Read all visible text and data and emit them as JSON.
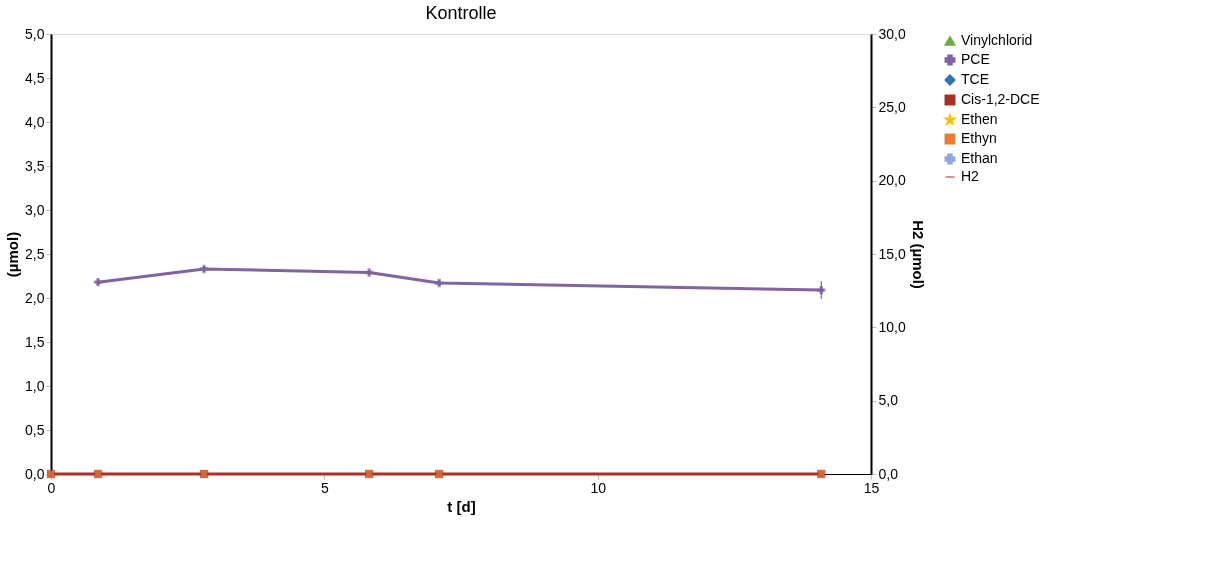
{
  "chart_data": {
    "type": "line",
    "title": "Kontrolle",
    "xlabel": "t [d]",
    "ylabel": "(µmol)",
    "y2label": "H2 (µmol)",
    "xlim": [
      0,
      15
    ],
    "xticks": [
      0,
      5,
      10,
      15
    ],
    "ylim": [
      0,
      5
    ],
    "yticks": [
      {
        "value": 0,
        "label": "0,0"
      },
      {
        "value": 0.5,
        "label": "0,5"
      },
      {
        "value": 1,
        "label": "1,0"
      },
      {
        "value": 1.5,
        "label": "1,5"
      },
      {
        "value": 2,
        "label": "2,0"
      },
      {
        "value": 2.5,
        "label": "2,5"
      },
      {
        "value": 3,
        "label": "3,0"
      },
      {
        "value": 3.5,
        "label": "3,5"
      },
      {
        "value": 4,
        "label": "4,0"
      },
      {
        "value": 4.5,
        "label": "4,5"
      },
      {
        "value": 5,
        "label": "5,0"
      }
    ],
    "y2lim": [
      0,
      30
    ],
    "y2ticks": [
      {
        "value": 0,
        "label": "0,0"
      },
      {
        "value": 5,
        "label": "5,0"
      },
      {
        "value": 10,
        "label": "10,0"
      },
      {
        "value": 15,
        "label": "15,0"
      },
      {
        "value": 20,
        "label": "20,0"
      },
      {
        "value": 25,
        "label": "25,0"
      },
      {
        "value": 30,
        "label": "30,0"
      }
    ],
    "grid": false,
    "legend": "right",
    "series": [
      {
        "name": "Vinylchlorid",
        "color": "#70ad47",
        "marker": "triangle"
      },
      {
        "name": "PCE",
        "color": "#8064a2",
        "marker": "cross",
        "x": [
          0.86,
          2.8,
          5.82,
          7.1,
          14.09
        ],
        "values": [
          2.18,
          2.33,
          2.29,
          2.17,
          2.09
        ],
        "errors": [
          0.03,
          0.03,
          0.03,
          0.03,
          0.1
        ]
      },
      {
        "name": "TCE",
        "color": "#2e75b6",
        "marker": "diamond"
      },
      {
        "name": "Cis-1,2-DCE",
        "color": "#a5302a",
        "marker": "square",
        "x": [
          0,
          0.86,
          2.8,
          5.82,
          7.1,
          14.09
        ],
        "values": [
          0,
          0,
          0,
          0,
          0,
          0
        ]
      },
      {
        "name": "Ethen",
        "color": "#ffc000",
        "marker": "star"
      },
      {
        "name": "Ethyn",
        "type": "scatter",
        "color": "#ed7d31",
        "marker": "square",
        "x": [
          0,
          0.86,
          2.8,
          5.82,
          7.1,
          14.09
        ],
        "values": [
          0,
          0,
          0,
          0,
          0,
          0
        ]
      },
      {
        "name": "Ethan",
        "color": "#8faadc",
        "marker": "cross"
      },
      {
        "name": "H2",
        "color": "#d99594",
        "marker": "none"
      }
    ]
  }
}
